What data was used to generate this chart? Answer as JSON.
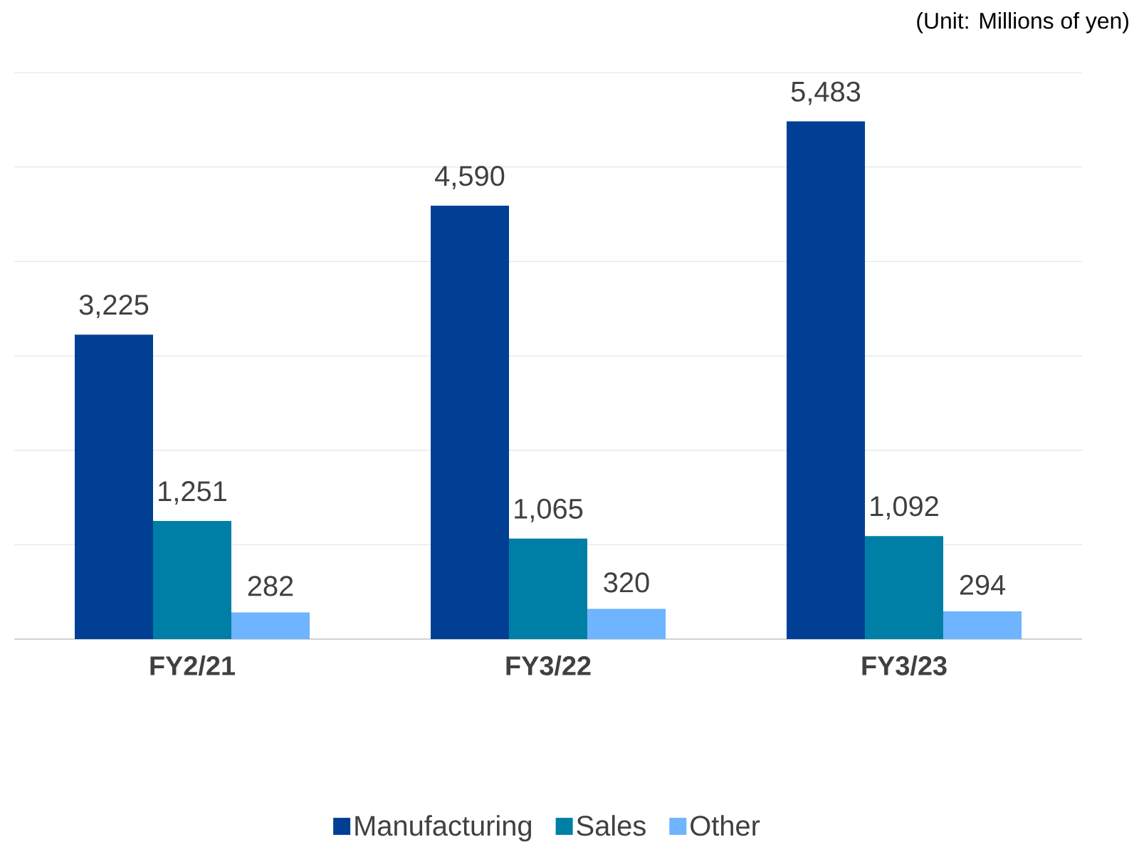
{
  "chart_data": {
    "type": "bar",
    "annotations": [
      "(Unit: Millions of yen)"
    ],
    "categories": [
      "FY2/21",
      "FY3/22",
      "FY3/23"
    ],
    "series": [
      {
        "name": "Manufacturing",
        "color": "#003f94",
        "values": [
          3225,
          4590,
          5483
        ],
        "value_labels": [
          "3,225",
          "4,590",
          "5,483"
        ]
      },
      {
        "name": "Sales",
        "color": "#007fa6",
        "values": [
          1251,
          1065,
          1092
        ],
        "value_labels": [
          "1,251",
          "1,065",
          "1,092"
        ]
      },
      {
        "name": "Other",
        "color": "#6eb4ff",
        "values": [
          282,
          320,
          294
        ],
        "value_labels": [
          "282",
          "320",
          "294"
        ]
      }
    ],
    "ylim": [
      0,
      6000
    ],
    "yticks": [
      {
        "value": 0,
        "label": null
      },
      {
        "value": 1000,
        "label": null
      },
      {
        "value": 2000,
        "label": null
      },
      {
        "value": 3000,
        "label": null
      },
      {
        "value": 4000,
        "label": null
      },
      {
        "value": 5000,
        "label": null
      },
      {
        "value": 6000,
        "label": null
      }
    ],
    "grid": "y",
    "legend": "bottom"
  }
}
